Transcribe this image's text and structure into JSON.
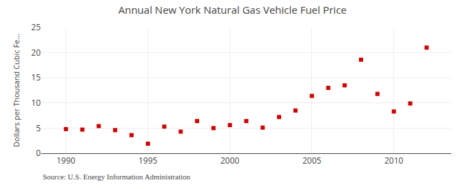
{
  "chart_data": {
    "type": "scatter",
    "title": "Annual New York Natural Gas Vehicle Fuel Price",
    "ylabel": "Dollars per Thousand Cubic Fe...",
    "annotations": [
      "Source: U.S. Energy Information Administration"
    ],
    "x": [
      1990,
      1991,
      1992,
      1993,
      1994,
      1995,
      1996,
      1997,
      1998,
      1999,
      2000,
      2001,
      2002,
      2003,
      2004,
      2005,
      2006,
      2007,
      2008,
      2009,
      2010,
      2011,
      2012
    ],
    "values": [
      4.8,
      4.7,
      5.4,
      4.6,
      3.6,
      1.9,
      5.3,
      4.3,
      6.4,
      5.0,
      5.6,
      6.4,
      5.1,
      7.2,
      8.5,
      11.4,
      13.0,
      13.5,
      18.6,
      11.8,
      8.3,
      9.9,
      21.0
    ],
    "color": "#cc0000",
    "marker": "square",
    "xlim": [
      1988.5,
      2013.5
    ],
    "xticks": [
      1990,
      1995,
      2000,
      2005,
      2010
    ],
    "ylim": [
      0,
      25
    ],
    "yticks": [
      0,
      5,
      10,
      15,
      20,
      25
    ],
    "grid": true
  }
}
